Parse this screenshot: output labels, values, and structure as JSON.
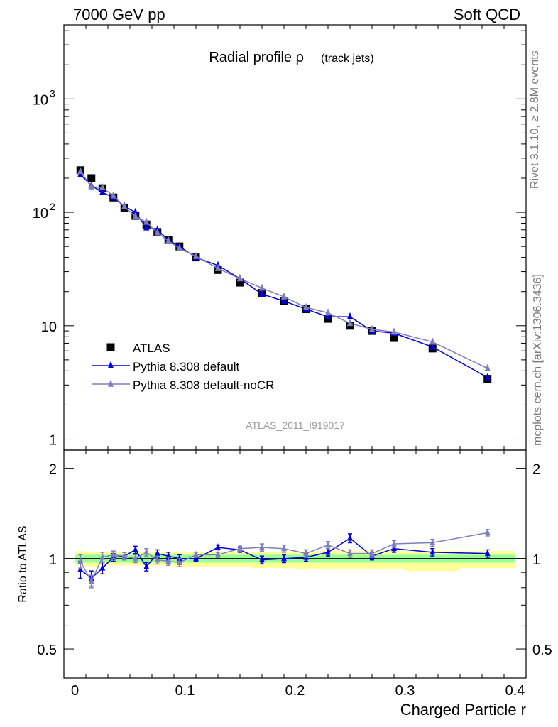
{
  "header": {
    "left": "7000 GeV pp",
    "right": "Soft QCD"
  },
  "side_labels": {
    "top": "Rivet 3.1.10, ≥ 2.8M events",
    "bottom": "mcplots.cern.ch [arXiv:1306.3436]"
  },
  "chart_data": [
    {
      "type": "scatter",
      "panel": "main",
      "title": "Radial profile ρ",
      "title_suffix": "(track jets)",
      "watermark": "ATLAS_2011_I919017",
      "yscale": "log",
      "xlim": [
        -0.01,
        0.41
      ],
      "ylim": [
        0.8,
        4500
      ],
      "ytick_labels": {
        "1": "1",
        "10": "10",
        "100": "10",
        "1000": "10"
      },
      "ytick_sups": {
        "100": "2",
        "1000": "3"
      },
      "legend_position": "bottom-left",
      "x": [
        0.005,
        0.015,
        0.025,
        0.035,
        0.045,
        0.055,
        0.065,
        0.075,
        0.085,
        0.095,
        0.11,
        0.13,
        0.15,
        0.17,
        0.19,
        0.21,
        0.23,
        0.25,
        0.27,
        0.29,
        0.325,
        0.375
      ],
      "series": [
        {
          "name": "ATLAS",
          "marker": "square",
          "color": "#000000",
          "values": [
            235,
            200,
            163,
            135,
            110,
            93,
            78,
            67,
            57,
            50,
            40,
            31,
            24,
            19.5,
            16.5,
            14,
            11.5,
            10,
            9,
            7.8,
            6.3,
            3.4
          ]
        },
        {
          "name": "Pythia 8.308 default",
          "marker": "triangle",
          "color": "#0000dd",
          "values": [
            215,
            172,
            150,
            135,
            113,
            100,
            73,
            70,
            57,
            50,
            40,
            34,
            26,
            19,
            16.5,
            14,
            12,
            12,
            9,
            8.6,
            6.5,
            3.5
          ]
        },
        {
          "name": "Pythia 8.308 default-noCR",
          "marker": "triangle",
          "color": "#7e7ebd",
          "values": [
            230,
            168,
            165,
            140,
            112,
            92,
            82,
            66,
            56,
            48,
            41,
            32,
            26,
            21.5,
            18,
            14.5,
            13,
            10.5,
            9.3,
            8.8,
            7.2,
            4.2
          ]
        }
      ]
    },
    {
      "type": "scatter",
      "panel": "ratio",
      "ylabel": "Ratio to ATLAS",
      "xlabel": "Charged Particle r",
      "xlim": [
        -0.01,
        0.41
      ],
      "ylim": [
        0.4,
        2.3
      ],
      "xtick_labels": [
        "0",
        "0.1",
        "0.2",
        "0.3",
        "0.4"
      ],
      "ytick_labels": [
        "0.5",
        "1",
        "2"
      ],
      "x": [
        0.005,
        0.015,
        0.025,
        0.035,
        0.045,
        0.055,
        0.065,
        0.075,
        0.085,
        0.095,
        0.11,
        0.13,
        0.15,
        0.17,
        0.19,
        0.21,
        0.23,
        0.25,
        0.27,
        0.29,
        0.325,
        0.375
      ],
      "band_edges": [
        0.0,
        0.01,
        0.02,
        0.03,
        0.04,
        0.05,
        0.06,
        0.07,
        0.08,
        0.09,
        0.1,
        0.12,
        0.14,
        0.16,
        0.18,
        0.2,
        0.22,
        0.24,
        0.26,
        0.28,
        0.3,
        0.35,
        0.4
      ],
      "band_outer": [
        [
          0.95,
          1.06
        ],
        [
          0.94,
          1.05
        ],
        [
          0.95,
          1.05
        ],
        [
          0.95,
          1.05
        ],
        [
          0.95,
          1.05
        ],
        [
          0.95,
          1.05
        ],
        [
          0.95,
          1.05
        ],
        [
          0.95,
          1.05
        ],
        [
          0.95,
          1.05
        ],
        [
          0.94,
          1.05
        ],
        [
          0.94,
          1.05
        ],
        [
          0.94,
          1.05
        ],
        [
          0.94,
          1.05
        ],
        [
          0.93,
          1.05
        ],
        [
          0.93,
          1.05
        ],
        [
          0.92,
          1.05
        ],
        [
          0.92,
          1.06
        ],
        [
          0.92,
          1.06
        ],
        [
          0.92,
          1.06
        ],
        [
          0.92,
          1.06
        ],
        [
          0.91,
          1.06
        ],
        [
          0.93,
          1.06
        ]
      ],
      "band_inner": [
        [
          0.97,
          1.03
        ],
        [
          0.97,
          1.03
        ],
        [
          0.97,
          1.03
        ],
        [
          0.97,
          1.03
        ],
        [
          0.97,
          1.03
        ],
        [
          0.97,
          1.03
        ],
        [
          0.97,
          1.03
        ],
        [
          0.97,
          1.03
        ],
        [
          0.97,
          1.03
        ],
        [
          0.97,
          1.03
        ],
        [
          0.97,
          1.03
        ],
        [
          0.97,
          1.03
        ],
        [
          0.97,
          1.03
        ],
        [
          0.97,
          1.03
        ],
        [
          0.97,
          1.03
        ],
        [
          0.97,
          1.03
        ],
        [
          0.97,
          1.03
        ],
        [
          0.97,
          1.03
        ],
        [
          0.97,
          1.03
        ],
        [
          0.97,
          1.03
        ],
        [
          0.97,
          1.03
        ],
        [
          0.97,
          1.03
        ]
      ],
      "series": [
        {
          "name": "Pythia 8.308 default",
          "color": "#0000dd",
          "values": [
            0.92,
            0.86,
            0.93,
            1.01,
            1.02,
            1.07,
            0.94,
            1.04,
            1.02,
            1.0,
            1.0,
            1.09,
            1.07,
            0.99,
            1.0,
            1.01,
            1.05,
            1.17,
            1.02,
            1.08,
            1.05,
            1.04
          ],
          "errors": [
            0.06,
            0.05,
            0.04,
            0.03,
            0.03,
            0.03,
            0.03,
            0.03,
            0.03,
            0.03,
            0.02,
            0.02,
            0.02,
            0.03,
            0.03,
            0.03,
            0.03,
            0.04,
            0.03,
            0.03,
            0.03,
            0.03
          ]
        },
        {
          "name": "Pythia 8.308 default-noCR",
          "color": "#7e7ebd",
          "values": [
            0.98,
            0.84,
            1.01,
            1.03,
            1.02,
            1.0,
            1.05,
            0.99,
            0.98,
            0.97,
            1.03,
            1.03,
            1.08,
            1.09,
            1.08,
            1.04,
            1.11,
            1.04,
            1.04,
            1.12,
            1.13,
            1.22
          ],
          "errors": [
            0.05,
            0.04,
            0.04,
            0.03,
            0.03,
            0.03,
            0.03,
            0.03,
            0.03,
            0.03,
            0.02,
            0.02,
            0.02,
            0.03,
            0.03,
            0.03,
            0.03,
            0.03,
            0.03,
            0.03,
            0.03,
            0.03
          ]
        }
      ]
    }
  ]
}
